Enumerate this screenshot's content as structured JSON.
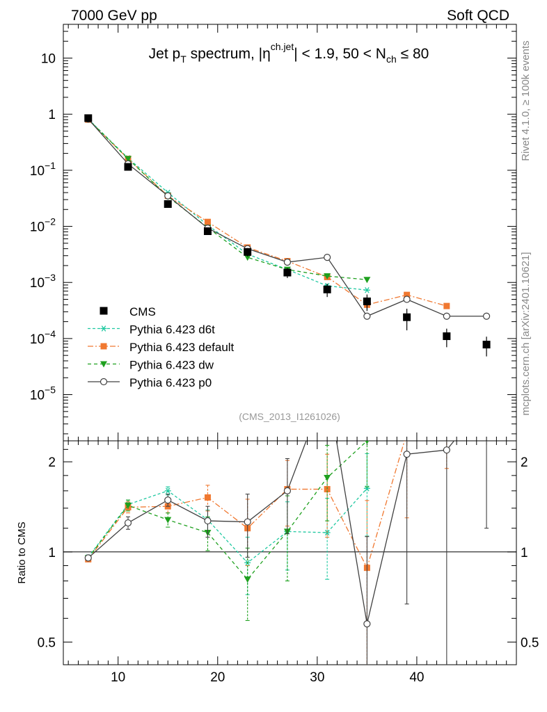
{
  "header": {
    "energy_label": "7000 GeV pp",
    "category_label": "Soft QCD",
    "title_main": "Jet p",
    "title_sub_T": "T",
    "title_mid": " spectrum, |η",
    "title_sup": "ch.jet",
    "title_tail": "| < 1.9, 50 < N",
    "title_sub_ch": "ch",
    "title_end": " ≤ 80",
    "analysis_id": "(CMS_2013_I1261026)",
    "side_rivet": "Rivet 4.1.0, ≥ 100k events",
    "side_mcplots": "mcplots.cern.ch [arXiv:2401.10621]"
  },
  "chart_data": {
    "type": "line",
    "top": {
      "yscale": "log",
      "ylim": [
        1.5e-06,
        40
      ],
      "yticks": [
        {
          "v": 10,
          "label": "10",
          "exp": ""
        },
        {
          "v": 1,
          "label": "1",
          "exp": ""
        },
        {
          "v": 0.1,
          "label": "10",
          "exp": "−1"
        },
        {
          "v": 0.01,
          "label": "10",
          "exp": "−2"
        },
        {
          "v": 0.001,
          "label": "10",
          "exp": "−3"
        },
        {
          "v": 0.0001,
          "label": "10",
          "exp": "−4"
        },
        {
          "v": 1e-05,
          "label": "10",
          "exp": "−5"
        }
      ]
    },
    "ratio": {
      "ylabel": "Ratio to CMS",
      "yscale": "log",
      "ylim": [
        0.42,
        2.35
      ],
      "yticks": [
        {
          "v": 2,
          "label": "2"
        },
        {
          "v": 1,
          "label": "1"
        },
        {
          "v": 0.5,
          "label": "0.5"
        }
      ]
    },
    "xlim": [
      4.5,
      50
    ],
    "xticks": [
      10,
      20,
      30,
      40
    ],
    "data": {
      "name": "CMS",
      "x": [
        7,
        11,
        15,
        19,
        23,
        27,
        31,
        35,
        39,
        43,
        47
      ],
      "y": [
        0.85,
        0.115,
        0.025,
        0.0082,
        0.0035,
        0.0015,
        0.00075,
        0.00046,
        0.00024,
        0.00011,
        7.8e-05
      ],
      "err": [
        0.04,
        0.008,
        0.002,
        0.0008,
        0.0006,
        0.0003,
        0.0002,
        0.00015,
        0.0001,
        4e-05,
        3e-05
      ]
    },
    "series": [
      {
        "name": "Pythia 6.423 d6t",
        "color": "#1ec8a0",
        "marker": "asterisk",
        "dash": "4,3",
        "y": [
          0.82,
          0.165,
          0.04,
          0.0105,
          0.0032,
          0.0017,
          0.00087,
          0.00073,
          null,
          null,
          null
        ],
        "ratio": [
          0.96,
          1.44,
          1.6,
          1.28,
          0.92,
          1.17,
          1.16,
          1.63,
          null,
          null,
          null
        ],
        "ratio_err": [
          0.015,
          0.05,
          0.05,
          0.1,
          0.2,
          0.3,
          0.35,
          0.5,
          null,
          null,
          null
        ]
      },
      {
        "name": "Pythia 6.423 default",
        "color": "#f07830",
        "marker": "square",
        "dash": "8,3,2,3",
        "y": [
          0.8,
          0.16,
          0.035,
          0.012,
          0.0042,
          0.0024,
          0.00125,
          0.0004,
          0.0006,
          0.00038,
          null
        ],
        "ratio": [
          0.945,
          1.41,
          1.42,
          1.52,
          1.2,
          1.62,
          1.62,
          0.885,
          2.5,
          3.4,
          null
        ],
        "ratio_err": [
          0.015,
          0.06,
          0.07,
          0.15,
          0.3,
          0.4,
          0.5,
          0.6,
          1.2,
          1.5,
          null
        ]
      },
      {
        "name": "Pythia 6.423 dw",
        "color": "#1ea01e",
        "marker": "triangle-down",
        "dash": "5,4",
        "y": [
          0.81,
          0.16,
          0.034,
          0.0095,
          0.0028,
          0.0017,
          0.0013,
          0.00112,
          null,
          null,
          null
        ],
        "ratio": [
          0.955,
          1.43,
          1.28,
          1.16,
          0.81,
          1.17,
          1.77,
          2.35,
          null,
          null,
          null
        ],
        "ratio_err": [
          0.015,
          0.06,
          0.07,
          0.15,
          0.22,
          0.37,
          0.5,
          0.7,
          null,
          null,
          null
        ]
      },
      {
        "name": "Pythia 6.423 p0",
        "color": "#404040",
        "marker": "circle-open",
        "dash": "",
        "y": [
          0.82,
          0.13,
          0.035,
          0.0093,
          0.004,
          0.0023,
          0.0028,
          0.00025,
          0.0005,
          0.00025,
          0.00025
        ],
        "ratio": [
          0.955,
          1.25,
          1.49,
          1.27,
          1.26,
          1.6,
          3.6,
          0.575,
          2.12,
          2.19,
          3.2
        ],
        "ratio_err": [
          0.015,
          0.06,
          0.07,
          0.15,
          0.3,
          0.45,
          0.8,
          0.55,
          1.45,
          1.9,
          2.0
        ]
      }
    ]
  }
}
